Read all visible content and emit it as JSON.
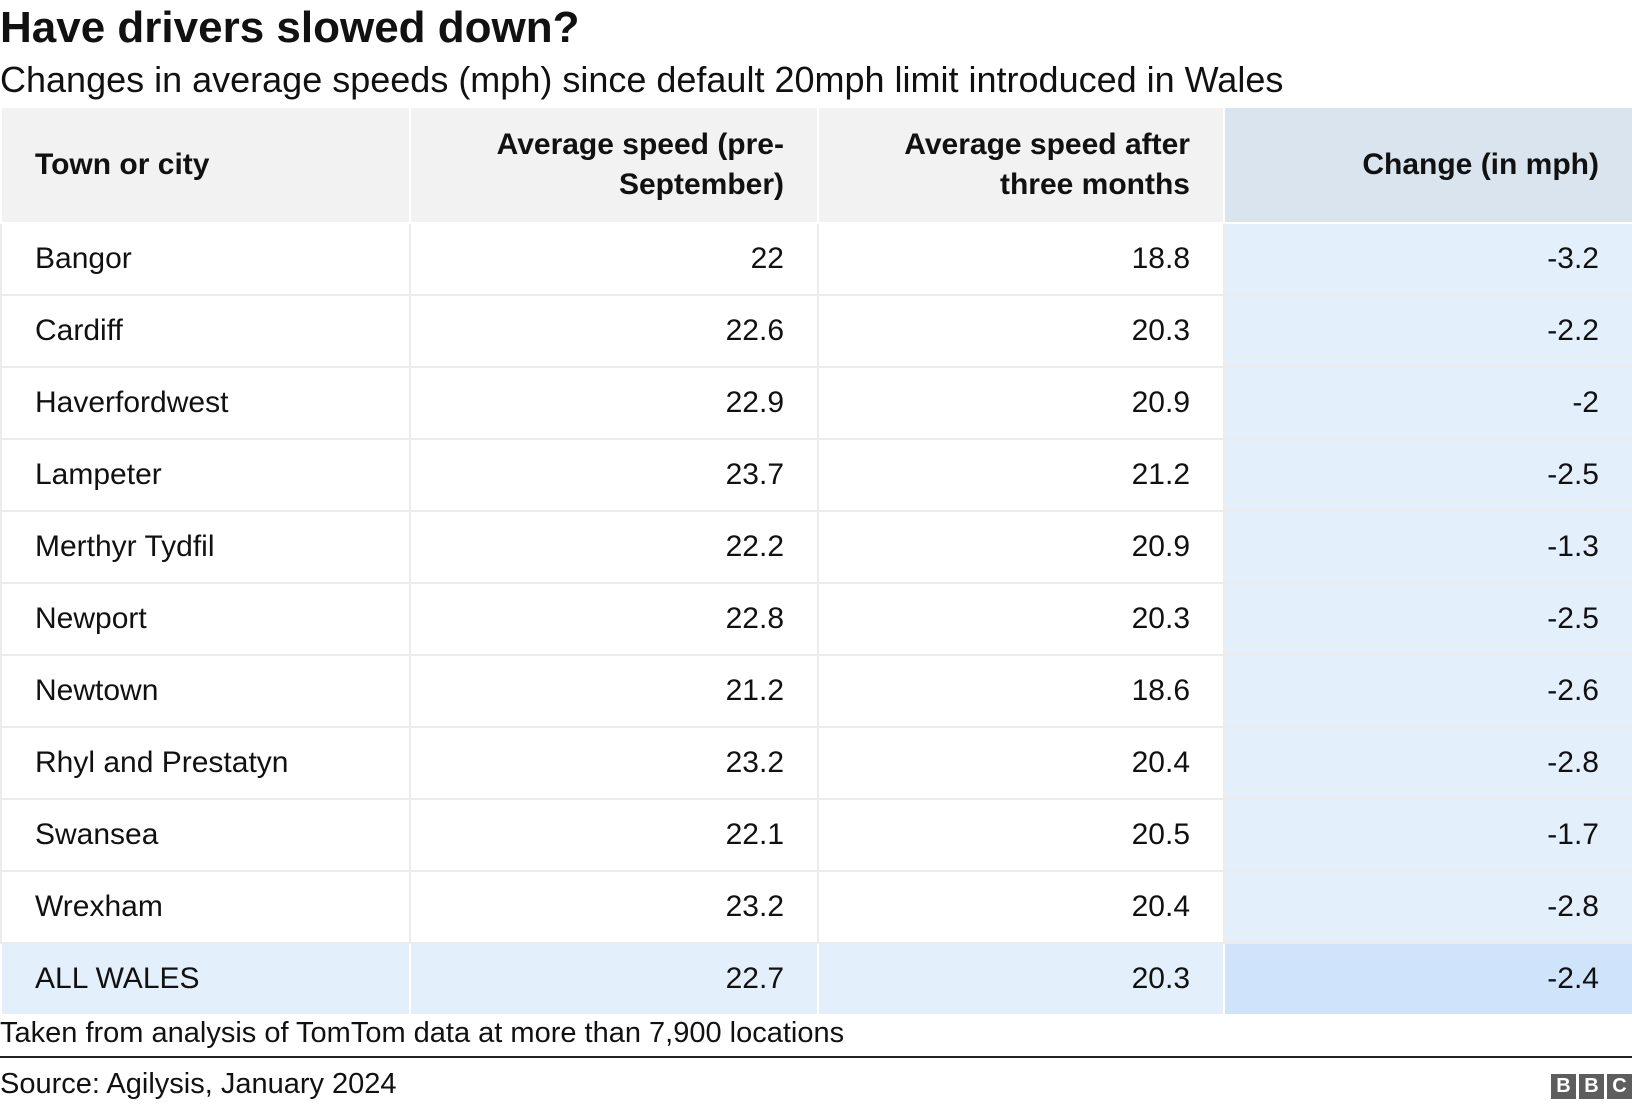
{
  "header": {
    "title": "Have drivers slowed down?",
    "subtitle": "Changes in average speeds (mph) since default 20mph limit introduced in Wales"
  },
  "chart_data": {
    "type": "table",
    "title": "Have drivers slowed down?",
    "subtitle": "Changes in average speeds (mph) since default 20mph limit introduced in Wales",
    "columns": [
      "Town or city",
      "Average speed (pre-September)",
      "Average speed after three months",
      "Change (in mph)"
    ],
    "rows": [
      [
        "Bangor",
        "22",
        "18.8",
        "-3.2"
      ],
      [
        "Cardiff",
        "22.6",
        "20.3",
        "-2.2"
      ],
      [
        "Haverfordwest",
        "22.9",
        "20.9",
        "-2"
      ],
      [
        "Lampeter",
        "23.7",
        "21.2",
        "-2.5"
      ],
      [
        "Merthyr Tydfil",
        "22.2",
        "20.9",
        "-1.3"
      ],
      [
        "Newport",
        "22.8",
        "20.3",
        "-2.5"
      ],
      [
        "Newtown",
        "21.2",
        "18.6",
        "-2.6"
      ],
      [
        "Rhyl and Prestatyn",
        "23.2",
        "20.4",
        "-2.8"
      ],
      [
        "Swansea",
        "22.1",
        "20.5",
        "-1.7"
      ],
      [
        "Wrexham",
        "23.2",
        "20.4",
        "-2.8"
      ],
      [
        "ALL WALES",
        "22.7",
        "20.3",
        "-2.4"
      ]
    ],
    "highlight_column": 3,
    "highlight_row": 10,
    "colors": {
      "header_bg": "#f2f2f2",
      "highlight_column_header_bg": "#d9e4ef",
      "highlight_column_bg": "#e3f0fc",
      "total_row_bg": "#e3f0fc",
      "total_highlight_cell_bg": "#cfe4fa"
    }
  },
  "footer": {
    "note": "Taken from analysis of TomTom data at more than 7,900 locations",
    "source": "Source: Agilysis, January 2024",
    "logo_letters": [
      "B",
      "B",
      "C"
    ]
  }
}
